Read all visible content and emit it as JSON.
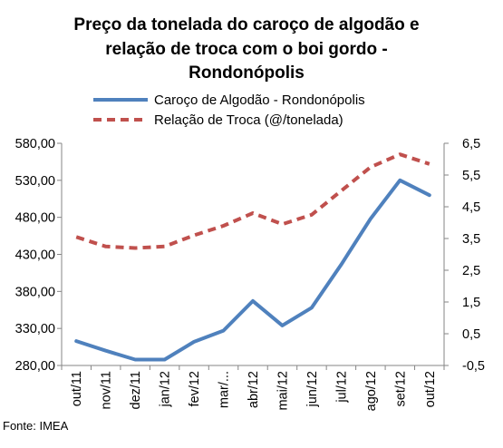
{
  "chart_data": {
    "type": "line",
    "title_lines": [
      "Preço da tonelada do caroço de algodão e",
      "relação de troca com o boi gordo -",
      "Rondonópolis"
    ],
    "categories": [
      "out/11",
      "nov/11",
      "dez/11",
      "jan/12",
      "fev/12",
      "mar/...",
      "abr/12",
      "mai/12",
      "jun/12",
      "jul/12",
      "ago/12",
      "set/12",
      "out/12"
    ],
    "series": [
      {
        "name": "Caroço de Algodão - Rondonópolis",
        "axis": "left",
        "color": "#4f81bd",
        "style": "solid",
        "values": [
          313,
          300,
          288,
          288,
          312,
          327,
          367,
          334,
          358,
          416,
          478,
          530,
          510
        ]
      },
      {
        "name": "Relação de Troca (@/tonelada)",
        "axis": "right",
        "color": "#c0504d",
        "style": "dashed",
        "values": [
          3.55,
          3.25,
          3.2,
          3.25,
          3.6,
          3.9,
          4.3,
          3.95,
          4.25,
          5.0,
          5.75,
          6.15,
          5.85
        ]
      }
    ],
    "y_left": {
      "ylim": [
        280,
        580
      ],
      "ticks": [
        "280,00",
        "330,00",
        "380,00",
        "430,00",
        "480,00",
        "530,00",
        "580,00"
      ],
      "tick_values": [
        280,
        330,
        380,
        430,
        480,
        530,
        580
      ]
    },
    "y_right": {
      "ylim": [
        -0.5,
        6.5
      ],
      "ticks": [
        "-0,5",
        "0,5",
        "1,5",
        "2,5",
        "3,5",
        "4,5",
        "5,5",
        "6,5"
      ],
      "tick_values": [
        -0.5,
        0.5,
        1.5,
        2.5,
        3.5,
        4.5,
        5.5,
        6.5
      ]
    },
    "grid": false,
    "legend_position": "top-center",
    "source": "Fonte: IMEA"
  }
}
